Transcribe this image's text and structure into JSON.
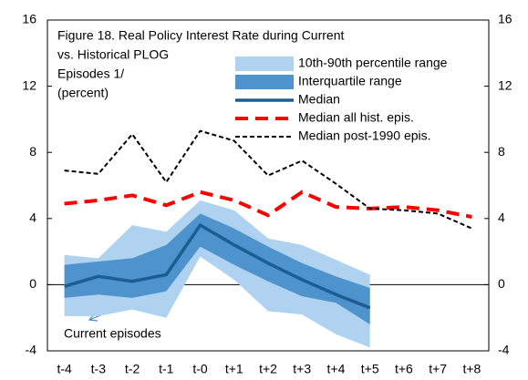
{
  "chart_data": {
    "type": "line",
    "title_lines": [
      "Figure 18. Real Policy Interest Rate during Current",
      "vs. Historical PLOG",
      "Episodes 1/",
      "(percent)"
    ],
    "categories": [
      "t-4",
      "t-3",
      "t-2",
      "t-1",
      "t-0",
      "t+1",
      "t+2",
      "t+3",
      "t+4",
      "t+5",
      "t+6",
      "t+7",
      "t+8"
    ],
    "series": [
      {
        "name": "10th-90th percentile range",
        "kind": "band",
        "color": "#aed2f0",
        "low": [
          -1.9,
          -1.9,
          -1.5,
          -2.0,
          1.7,
          0.3,
          -1.6,
          -1.8,
          -3.0,
          -3.8,
          null,
          null,
          null
        ],
        "high": [
          1.8,
          1.6,
          3.6,
          3.2,
          5.1,
          4.5,
          2.8,
          2.4,
          1.5,
          0.6,
          null,
          null,
          null
        ]
      },
      {
        "name": "Interquartile range",
        "kind": "band",
        "color": "#4e93cc",
        "low": [
          -0.8,
          -0.6,
          -0.8,
          -0.4,
          2.3,
          1.2,
          0.2,
          -0.7,
          -1.1,
          -2.4,
          null,
          null,
          null
        ],
        "high": [
          1.2,
          1.4,
          1.6,
          2.4,
          4.3,
          3.4,
          2.3,
          1.3,
          0.5,
          -0.2,
          null,
          null,
          null
        ]
      },
      {
        "name": "Median",
        "kind": "line",
        "color": "#1b5e94",
        "dash": "none",
        "width": 3.5,
        "values": [
          -0.1,
          0.5,
          0.2,
          0.6,
          3.6,
          2.4,
          1.3,
          0.3,
          -0.6,
          -1.4,
          null,
          null,
          null
        ]
      },
      {
        "name": "Median all hist. epis.",
        "kind": "line",
        "color": "#ff0000",
        "dash": "14 8",
        "width": 4,
        "values": [
          4.9,
          5.1,
          5.4,
          4.8,
          5.6,
          5.1,
          4.2,
          5.6,
          4.7,
          4.6,
          4.7,
          4.5,
          4.1
        ]
      },
      {
        "name": "Median post-1990 epis.",
        "kind": "line",
        "color": "#000000",
        "dash": "5 3",
        "width": 2,
        "values": [
          6.9,
          6.7,
          9.1,
          6.2,
          9.3,
          8.7,
          6.6,
          7.5,
          6.1,
          4.6,
          4.5,
          4.3,
          3.4
        ]
      }
    ],
    "annotation": "Current episodes",
    "ylim": [
      -4,
      16
    ],
    "yticks": [
      -4,
      0,
      4,
      8,
      12,
      16
    ],
    "y2lim": [
      -4,
      16
    ],
    "y2ticks": [
      -4,
      0,
      4,
      8,
      12,
      16
    ],
    "zero_line": true
  }
}
